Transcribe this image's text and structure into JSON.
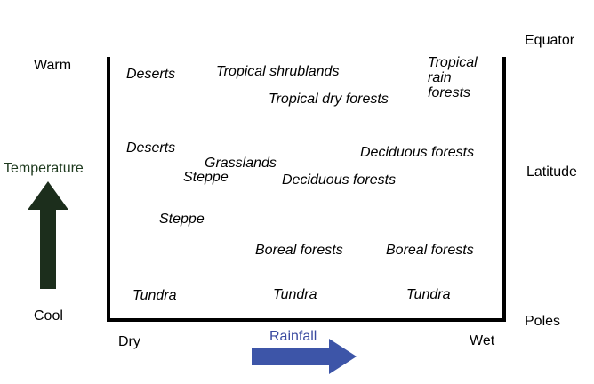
{
  "left_axis": {
    "top_label": "Warm",
    "title": "Temperature",
    "bottom_label": "Cool",
    "title_color": "#1e3a1e",
    "arrow_color": "#1c2e1c",
    "arrow_direction": "up"
  },
  "right_axis": {
    "top_label": "Equator",
    "middle_label": "Latitude",
    "bottom_label": "Poles"
  },
  "bottom_axis": {
    "left_label": "Dry",
    "title": "Rainfall",
    "right_label": "Wet",
    "title_color": "#3a4aa0",
    "arrow_color": "#3d55a8",
    "arrow_direction": "right"
  },
  "biomes": {
    "deserts_warm": "Deserts",
    "tropical_shrublands": "Tropical shrublands",
    "tropical_dry_forests": "Tropical dry forests",
    "tropical_rain_forests": [
      "Tropical",
      "rain",
      "forests"
    ],
    "deserts_mid": "Deserts",
    "grasslands": "Grasslands",
    "steppe_upper": "Steppe",
    "deciduous_forests_right": "Deciduous forests",
    "deciduous_forests_center": "Deciduous forests",
    "steppe_lower": "Steppe",
    "boreal_forests_center": "Boreal forests",
    "boreal_forests_right": "Boreal forests",
    "tundra_left": "Tundra",
    "tundra_center": "Tundra",
    "tundra_right": "Tundra"
  }
}
